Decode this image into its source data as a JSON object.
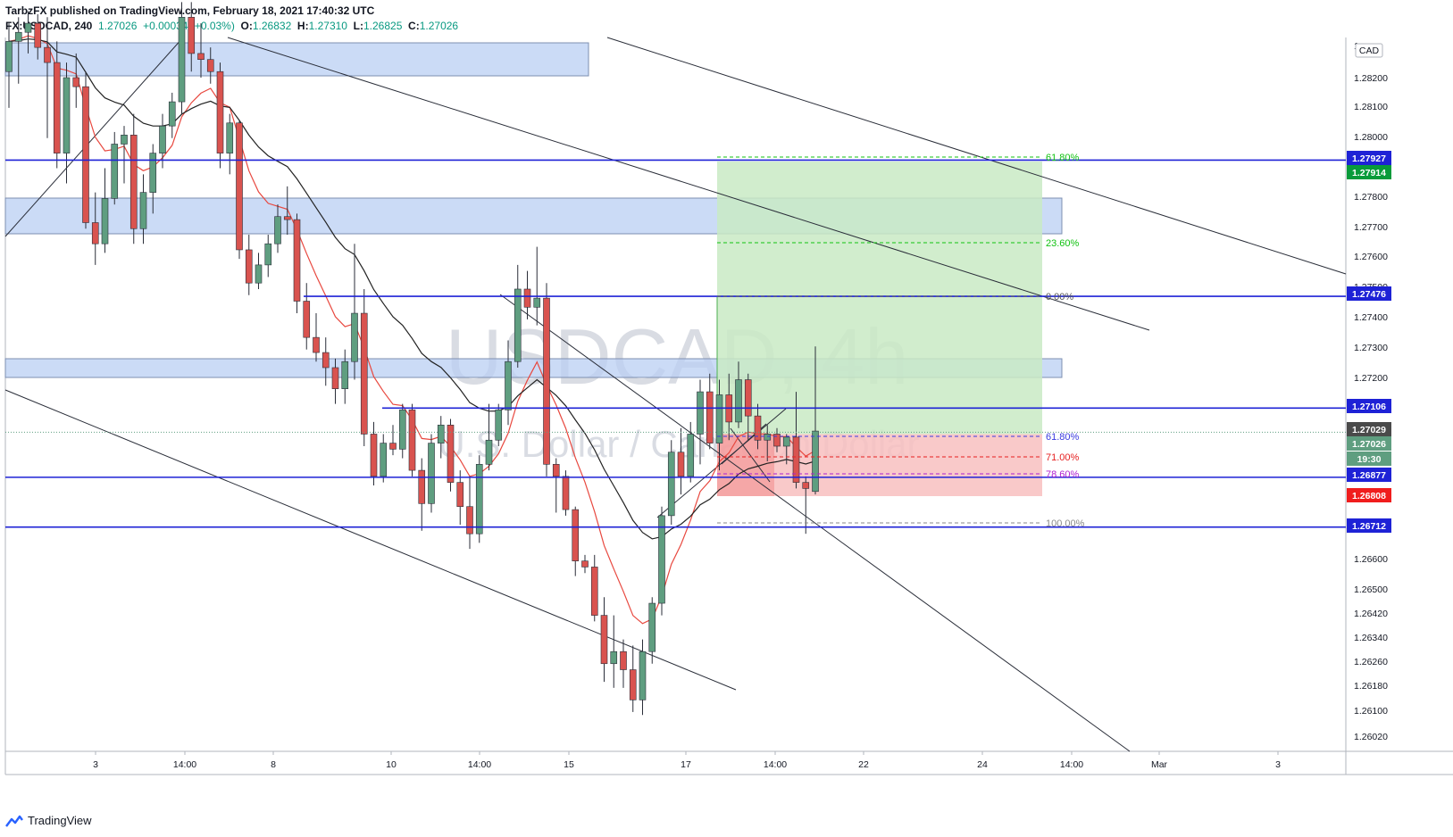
{
  "header": {
    "publisher_line": "TarbzFX published on TradingView.com, February 18, 2021 17:40:32 UTC",
    "symbol": "FX:USDCAD, 240",
    "last": "1.27026",
    "change": "+0.00034 (+0.03%)",
    "o_label": "O:",
    "o_val": "1.26832",
    "h_label": "H:",
    "h_val": "1.27310",
    "l_label": "L:",
    "l_val": "1.26825",
    "c_label": "C:",
    "c_val": "1.27026"
  },
  "watermark": {
    "symbol": "USDCAD, 4h",
    "name": "U.S. Dollar / Canadian Dollar"
  },
  "footer": {
    "brand": "TradingView"
  },
  "axis": {
    "currency": "CAD",
    "x_ticks": [
      "3",
      "14:00",
      "8",
      "10",
      "14:00",
      "15",
      "17",
      "14:00",
      "22",
      "24",
      "14:00",
      "Mar",
      "3"
    ],
    "y_ticks": [
      "1.28200",
      "1.28100",
      "1.28000",
      "1.27800",
      "1.27700",
      "1.27600",
      "1.27500",
      "1.27400",
      "1.27300",
      "1.27200",
      "1.26600",
      "1.26500",
      "1.26420",
      "1.26340",
      "1.26260",
      "1.26180",
      "1.26100",
      "1.26020"
    ],
    "top_tick": "1."
  },
  "price_tags": [
    {
      "label": "1.27927",
      "bg": "#1e22d6",
      "fg": "#ffffff"
    },
    {
      "label": "1.27914",
      "bg": "#089b3a",
      "fg": "#ffffff"
    },
    {
      "label": "1.27476",
      "bg": "#1e22d6",
      "fg": "#ffffff"
    },
    {
      "label": "1.27106",
      "bg": "#1e22d6",
      "fg": "#ffffff"
    },
    {
      "label": "1.27029",
      "bg": "#4a4a4a",
      "fg": "#ffffff"
    },
    {
      "label": "1.27026",
      "bg": "#5f9e80",
      "fg": "#ffffff"
    },
    {
      "label": "19:30",
      "bg": "#5f9e80",
      "fg": "#ffffff"
    },
    {
      "label": "1.26877",
      "bg": "#1e22d6",
      "fg": "#ffffff"
    },
    {
      "label": "1.26808",
      "bg": "#f01d1d",
      "fg": "#ffffff"
    },
    {
      "label": "1.26712",
      "bg": "#1e22d6",
      "fg": "#ffffff"
    }
  ],
  "fib_labels": [
    {
      "label": "61.80%",
      "color": "#11c211"
    },
    {
      "label": "23.60%",
      "color": "#11c211"
    },
    {
      "label": "0.00%",
      "color": "#555555"
    },
    {
      "label": "61.80%",
      "color": "#3a3ae0"
    },
    {
      "label": "71.00%",
      "color": "#e62020"
    },
    {
      "label": "78.60%",
      "color": "#b020d0"
    },
    {
      "label": "100.00%",
      "color": "#8a8a8a"
    }
  ],
  "colors": {
    "up": "#5f9e80",
    "down": "#d9534f",
    "zone": "#b9cff3",
    "hline": "#1e22d6",
    "profit": "#c9eac4",
    "loss": "#f8c0c0",
    "ema_fast": "#e8483f",
    "ema_slow": "#222222"
  },
  "chart_data": {
    "type": "candlestick",
    "symbol": "FX:USDCAD",
    "interval": "240",
    "ylim": [
      1.2595,
      1.2845
    ],
    "horizontal_levels": [
      1.27927,
      1.27476,
      1.27106,
      1.26877,
      1.26712
    ],
    "last_close": 1.27026,
    "candles": [
      {
        "o": 1.2822,
        "h": 1.2838,
        "l": 1.281,
        "c": 1.2832
      },
      {
        "o": 1.2832,
        "h": 1.284,
        "l": 1.2818,
        "c": 1.2835
      },
      {
        "o": 1.2835,
        "h": 1.2842,
        "l": 1.2828,
        "c": 1.2838
      },
      {
        "o": 1.2838,
        "h": 1.2841,
        "l": 1.2826,
        "c": 1.283
      },
      {
        "o": 1.283,
        "h": 1.284,
        "l": 1.28,
        "c": 1.2825
      },
      {
        "o": 1.2825,
        "h": 1.2832,
        "l": 1.279,
        "c": 1.2795
      },
      {
        "o": 1.2795,
        "h": 1.2825,
        "l": 1.2785,
        "c": 1.282
      },
      {
        "o": 1.282,
        "h": 1.2828,
        "l": 1.281,
        "c": 1.2817
      },
      {
        "o": 1.2817,
        "h": 1.2822,
        "l": 1.277,
        "c": 1.2772
      },
      {
        "o": 1.2772,
        "h": 1.2782,
        "l": 1.2758,
        "c": 1.2765
      },
      {
        "o": 1.2765,
        "h": 1.279,
        "l": 1.2762,
        "c": 1.278
      },
      {
        "o": 1.278,
        "h": 1.2802,
        "l": 1.2778,
        "c": 1.2798
      },
      {
        "o": 1.2798,
        "h": 1.2804,
        "l": 1.2785,
        "c": 1.2801
      },
      {
        "o": 1.2801,
        "h": 1.2808,
        "l": 1.2765,
        "c": 1.277
      },
      {
        "o": 1.277,
        "h": 1.2788,
        "l": 1.2765,
        "c": 1.2782
      },
      {
        "o": 1.2782,
        "h": 1.2798,
        "l": 1.2775,
        "c": 1.2795
      },
      {
        "o": 1.2795,
        "h": 1.2808,
        "l": 1.279,
        "c": 1.2804
      },
      {
        "o": 1.2804,
        "h": 1.2815,
        "l": 1.28,
        "c": 1.2812
      },
      {
        "o": 1.2812,
        "h": 1.2845,
        "l": 1.2808,
        "c": 1.284
      },
      {
        "o": 1.284,
        "h": 1.2845,
        "l": 1.2822,
        "c": 1.2828
      },
      {
        "o": 1.2828,
        "h": 1.2838,
        "l": 1.282,
        "c": 1.2826
      },
      {
        "o": 1.2826,
        "h": 1.283,
        "l": 1.2818,
        "c": 1.2822
      },
      {
        "o": 1.2822,
        "h": 1.2825,
        "l": 1.279,
        "c": 1.2795
      },
      {
        "o": 1.2795,
        "h": 1.2808,
        "l": 1.2788,
        "c": 1.2805
      },
      {
        "o": 1.2805,
        "h": 1.2806,
        "l": 1.276,
        "c": 1.2763
      },
      {
        "o": 1.2763,
        "h": 1.2768,
        "l": 1.2748,
        "c": 1.2752
      },
      {
        "o": 1.2752,
        "h": 1.2762,
        "l": 1.275,
        "c": 1.2758
      },
      {
        "o": 1.2758,
        "h": 1.2768,
        "l": 1.2754,
        "c": 1.2765
      },
      {
        "o": 1.2765,
        "h": 1.2778,
        "l": 1.2762,
        "c": 1.2774
      },
      {
        "o": 1.2774,
        "h": 1.2784,
        "l": 1.2768,
        "c": 1.2773
      },
      {
        "o": 1.2773,
        "h": 1.2775,
        "l": 1.2742,
        "c": 1.2746
      },
      {
        "o": 1.2746,
        "h": 1.2752,
        "l": 1.273,
        "c": 1.2734
      },
      {
        "o": 1.2734,
        "h": 1.2742,
        "l": 1.2726,
        "c": 1.2729
      },
      {
        "o": 1.2729,
        "h": 1.2734,
        "l": 1.2718,
        "c": 1.2724
      },
      {
        "o": 1.2724,
        "h": 1.2727,
        "l": 1.2712,
        "c": 1.2717
      },
      {
        "o": 1.2717,
        "h": 1.273,
        "l": 1.2712,
        "c": 1.2726
      },
      {
        "o": 1.2726,
        "h": 1.2765,
        "l": 1.272,
        "c": 1.2742
      },
      {
        "o": 1.2742,
        "h": 1.275,
        "l": 1.2698,
        "c": 1.2702
      },
      {
        "o": 1.2702,
        "h": 1.2706,
        "l": 1.2685,
        "c": 1.2688
      },
      {
        "o": 1.2688,
        "h": 1.2702,
        "l": 1.2686,
        "c": 1.2699
      },
      {
        "o": 1.2699,
        "h": 1.2705,
        "l": 1.2695,
        "c": 1.2697
      },
      {
        "o": 1.2697,
        "h": 1.2712,
        "l": 1.2694,
        "c": 1.271
      },
      {
        "o": 1.271,
        "h": 1.2712,
        "l": 1.2688,
        "c": 1.269
      },
      {
        "o": 1.269,
        "h": 1.2694,
        "l": 1.267,
        "c": 1.2679
      },
      {
        "o": 1.2679,
        "h": 1.2702,
        "l": 1.2676,
        "c": 1.2699
      },
      {
        "o": 1.2699,
        "h": 1.2708,
        "l": 1.2694,
        "c": 1.2705
      },
      {
        "o": 1.2705,
        "h": 1.2707,
        "l": 1.2683,
        "c": 1.2686
      },
      {
        "o": 1.2686,
        "h": 1.269,
        "l": 1.2672,
        "c": 1.2678
      },
      {
        "o": 1.2678,
        "h": 1.2688,
        "l": 1.2664,
        "c": 1.2669
      },
      {
        "o": 1.2669,
        "h": 1.2695,
        "l": 1.2666,
        "c": 1.2692
      },
      {
        "o": 1.2692,
        "h": 1.2712,
        "l": 1.269,
        "c": 1.27
      },
      {
        "o": 1.27,
        "h": 1.2712,
        "l": 1.2698,
        "c": 1.271
      },
      {
        "o": 1.271,
        "h": 1.2733,
        "l": 1.2705,
        "c": 1.2726
      },
      {
        "o": 1.2726,
        "h": 1.2758,
        "l": 1.2724,
        "c": 1.275
      },
      {
        "o": 1.275,
        "h": 1.2756,
        "l": 1.274,
        "c": 1.2744
      },
      {
        "o": 1.2744,
        "h": 1.2764,
        "l": 1.2738,
        "c": 1.2747
      },
      {
        "o": 1.2747,
        "h": 1.2752,
        "l": 1.2688,
        "c": 1.2692
      },
      {
        "o": 1.2692,
        "h": 1.2694,
        "l": 1.2676,
        "c": 1.2688
      },
      {
        "o": 1.2688,
        "h": 1.269,
        "l": 1.2675,
        "c": 1.2677
      },
      {
        "o": 1.2677,
        "h": 1.2678,
        "l": 1.2655,
        "c": 1.266
      },
      {
        "o": 1.266,
        "h": 1.2662,
        "l": 1.2656,
        "c": 1.2658
      },
      {
        "o": 1.2658,
        "h": 1.2662,
        "l": 1.264,
        "c": 1.2642
      },
      {
        "o": 1.2642,
        "h": 1.2648,
        "l": 1.262,
        "c": 1.2626
      },
      {
        "o": 1.2626,
        "h": 1.2642,
        "l": 1.2618,
        "c": 1.263
      },
      {
        "o": 1.263,
        "h": 1.2634,
        "l": 1.2618,
        "c": 1.2624
      },
      {
        "o": 1.2624,
        "h": 1.2632,
        "l": 1.261,
        "c": 1.2614
      },
      {
        "o": 1.2614,
        "h": 1.2634,
        "l": 1.2609,
        "c": 1.263
      },
      {
        "o": 1.263,
        "h": 1.2648,
        "l": 1.2626,
        "c": 1.2646
      },
      {
        "o": 1.2646,
        "h": 1.2678,
        "l": 1.2642,
        "c": 1.2675
      },
      {
        "o": 1.2675,
        "h": 1.27,
        "l": 1.2672,
        "c": 1.2696
      },
      {
        "o": 1.2696,
        "h": 1.2704,
        "l": 1.2682,
        "c": 1.2688
      },
      {
        "o": 1.2688,
        "h": 1.2706,
        "l": 1.2686,
        "c": 1.2702
      },
      {
        "o": 1.2702,
        "h": 1.272,
        "l": 1.2692,
        "c": 1.2716
      },
      {
        "o": 1.2716,
        "h": 1.2722,
        "l": 1.2697,
        "c": 1.2699
      },
      {
        "o": 1.2699,
        "h": 1.272,
        "l": 1.269,
        "c": 1.2715
      },
      {
        "o": 1.2715,
        "h": 1.2722,
        "l": 1.27,
        "c": 1.2706
      },
      {
        "o": 1.2706,
        "h": 1.2726,
        "l": 1.2704,
        "c": 1.272
      },
      {
        "o": 1.272,
        "h": 1.2722,
        "l": 1.27,
        "c": 1.2708
      },
      {
        "o": 1.2708,
        "h": 1.2712,
        "l": 1.2697,
        "c": 1.27
      },
      {
        "o": 1.27,
        "h": 1.2705,
        "l": 1.2693,
        "c": 1.2702
      },
      {
        "o": 1.2702,
        "h": 1.2704,
        "l": 1.2696,
        "c": 1.2698
      },
      {
        "o": 1.2698,
        "h": 1.2702,
        "l": 1.2692,
        "c": 1.2701
      },
      {
        "o": 1.2701,
        "h": 1.2716,
        "l": 1.2684,
        "c": 1.2686
      },
      {
        "o": 1.2686,
        "h": 1.2688,
        "l": 1.2669,
        "c": 1.2684
      },
      {
        "o": 1.2683,
        "h": 1.2731,
        "l": 1.2682,
        "c": 1.2703
      }
    ]
  }
}
